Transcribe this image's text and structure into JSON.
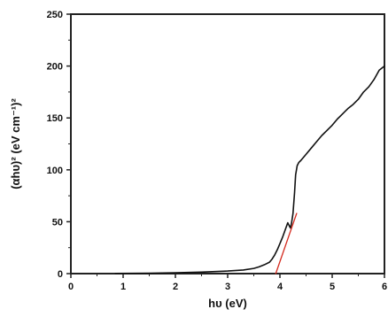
{
  "chart_data": {
    "type": "line",
    "title": "",
    "xlabel": "hυ (eV)",
    "ylabel": "(αhυ)² (eV cm⁻¹)²",
    "xlim": [
      0,
      6
    ],
    "ylim": [
      0,
      250
    ],
    "xticks": [
      0,
      1,
      2,
      3,
      4,
      5,
      6
    ],
    "yticks": [
      0,
      50,
      100,
      150,
      200,
      250
    ],
    "xtick_labels": [
      "0",
      "1",
      "2",
      "3",
      "4",
      "5",
      "6"
    ],
    "ytick_labels": [
      "0",
      "50",
      "100",
      "150",
      "200",
      "250"
    ],
    "grid": false,
    "series": [
      {
        "color": "#111111",
        "x": [
          0.85,
          1.5,
          2.0,
          2.5,
          3.0,
          3.3,
          3.5,
          3.6,
          3.7,
          3.8,
          3.85,
          3.9,
          3.95,
          4.0,
          4.05,
          4.1,
          4.15,
          4.18,
          4.2,
          4.22,
          4.25,
          4.28,
          4.3,
          4.33,
          4.36,
          4.4,
          4.5,
          4.6,
          4.7,
          4.8,
          4.9,
          5.0,
          5.1,
          5.2,
          5.3,
          5.4,
          5.5,
          5.6,
          5.7,
          5.8,
          5.9,
          6.0
        ],
        "y": [
          0.2,
          0.4,
          0.8,
          1.4,
          2.5,
          3.5,
          5,
          6.5,
          8.5,
          11,
          14,
          18,
          23,
          29,
          35,
          42,
          49,
          46,
          44,
          48,
          58,
          78,
          95,
          104,
          107,
          109,
          115,
          121,
          127,
          133,
          138,
          143,
          149,
          154,
          159,
          163,
          168,
          175,
          180,
          187,
          196,
          200
        ]
      },
      {
        "color": "#d42a1e",
        "x": [
          3.92,
          4.32
        ],
        "y": [
          0,
          58
        ]
      }
    ]
  }
}
